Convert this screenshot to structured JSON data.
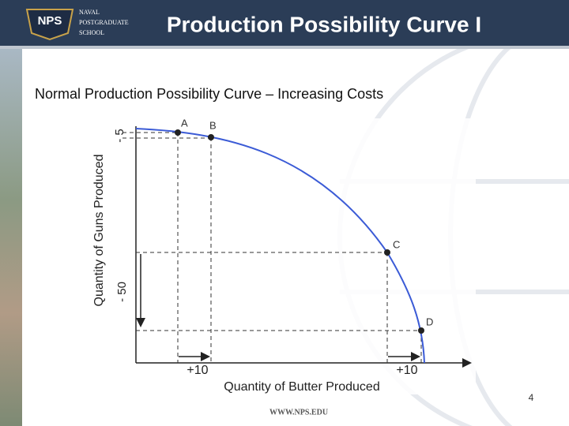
{
  "header": {
    "title": "Production Possibility Curve I",
    "logo_badge": "NPS",
    "logo_lines": [
      "NAVAL",
      "POSTGRADUATE",
      "SCHOOL"
    ]
  },
  "subtitle": "Normal Production Possibility Curve – Increasing Costs",
  "diagram": {
    "y_axis_label": "Quantity of Guns Produced",
    "x_axis_label": "Quantity of Butter Produced",
    "points": [
      "A",
      "B",
      "C",
      "D"
    ],
    "y_changes": [
      "- 5",
      "- 50"
    ],
    "x_changes": [
      "+10",
      "+10"
    ]
  },
  "footer": {
    "url": "WWW.NPS.EDU",
    "page": "4"
  }
}
